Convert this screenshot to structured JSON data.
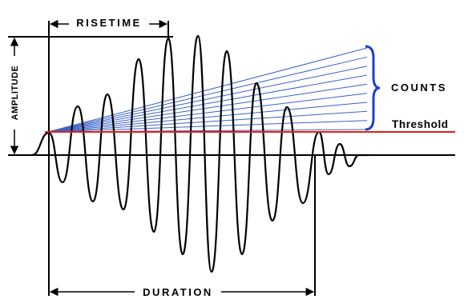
{
  "labels": {
    "risetime": "RISETIME",
    "amplitude": "AMPLITUDE",
    "counts": "COUNTS",
    "threshold": "Threshold",
    "duration": "DURATION"
  },
  "threshold_crossings": 9,
  "colors": {
    "waveform": "#000000",
    "threshold_line": "#e0201c",
    "count_lines": "#3a63c8",
    "brace": "#1f3fd0",
    "dimension_lines": "#000000"
  }
}
